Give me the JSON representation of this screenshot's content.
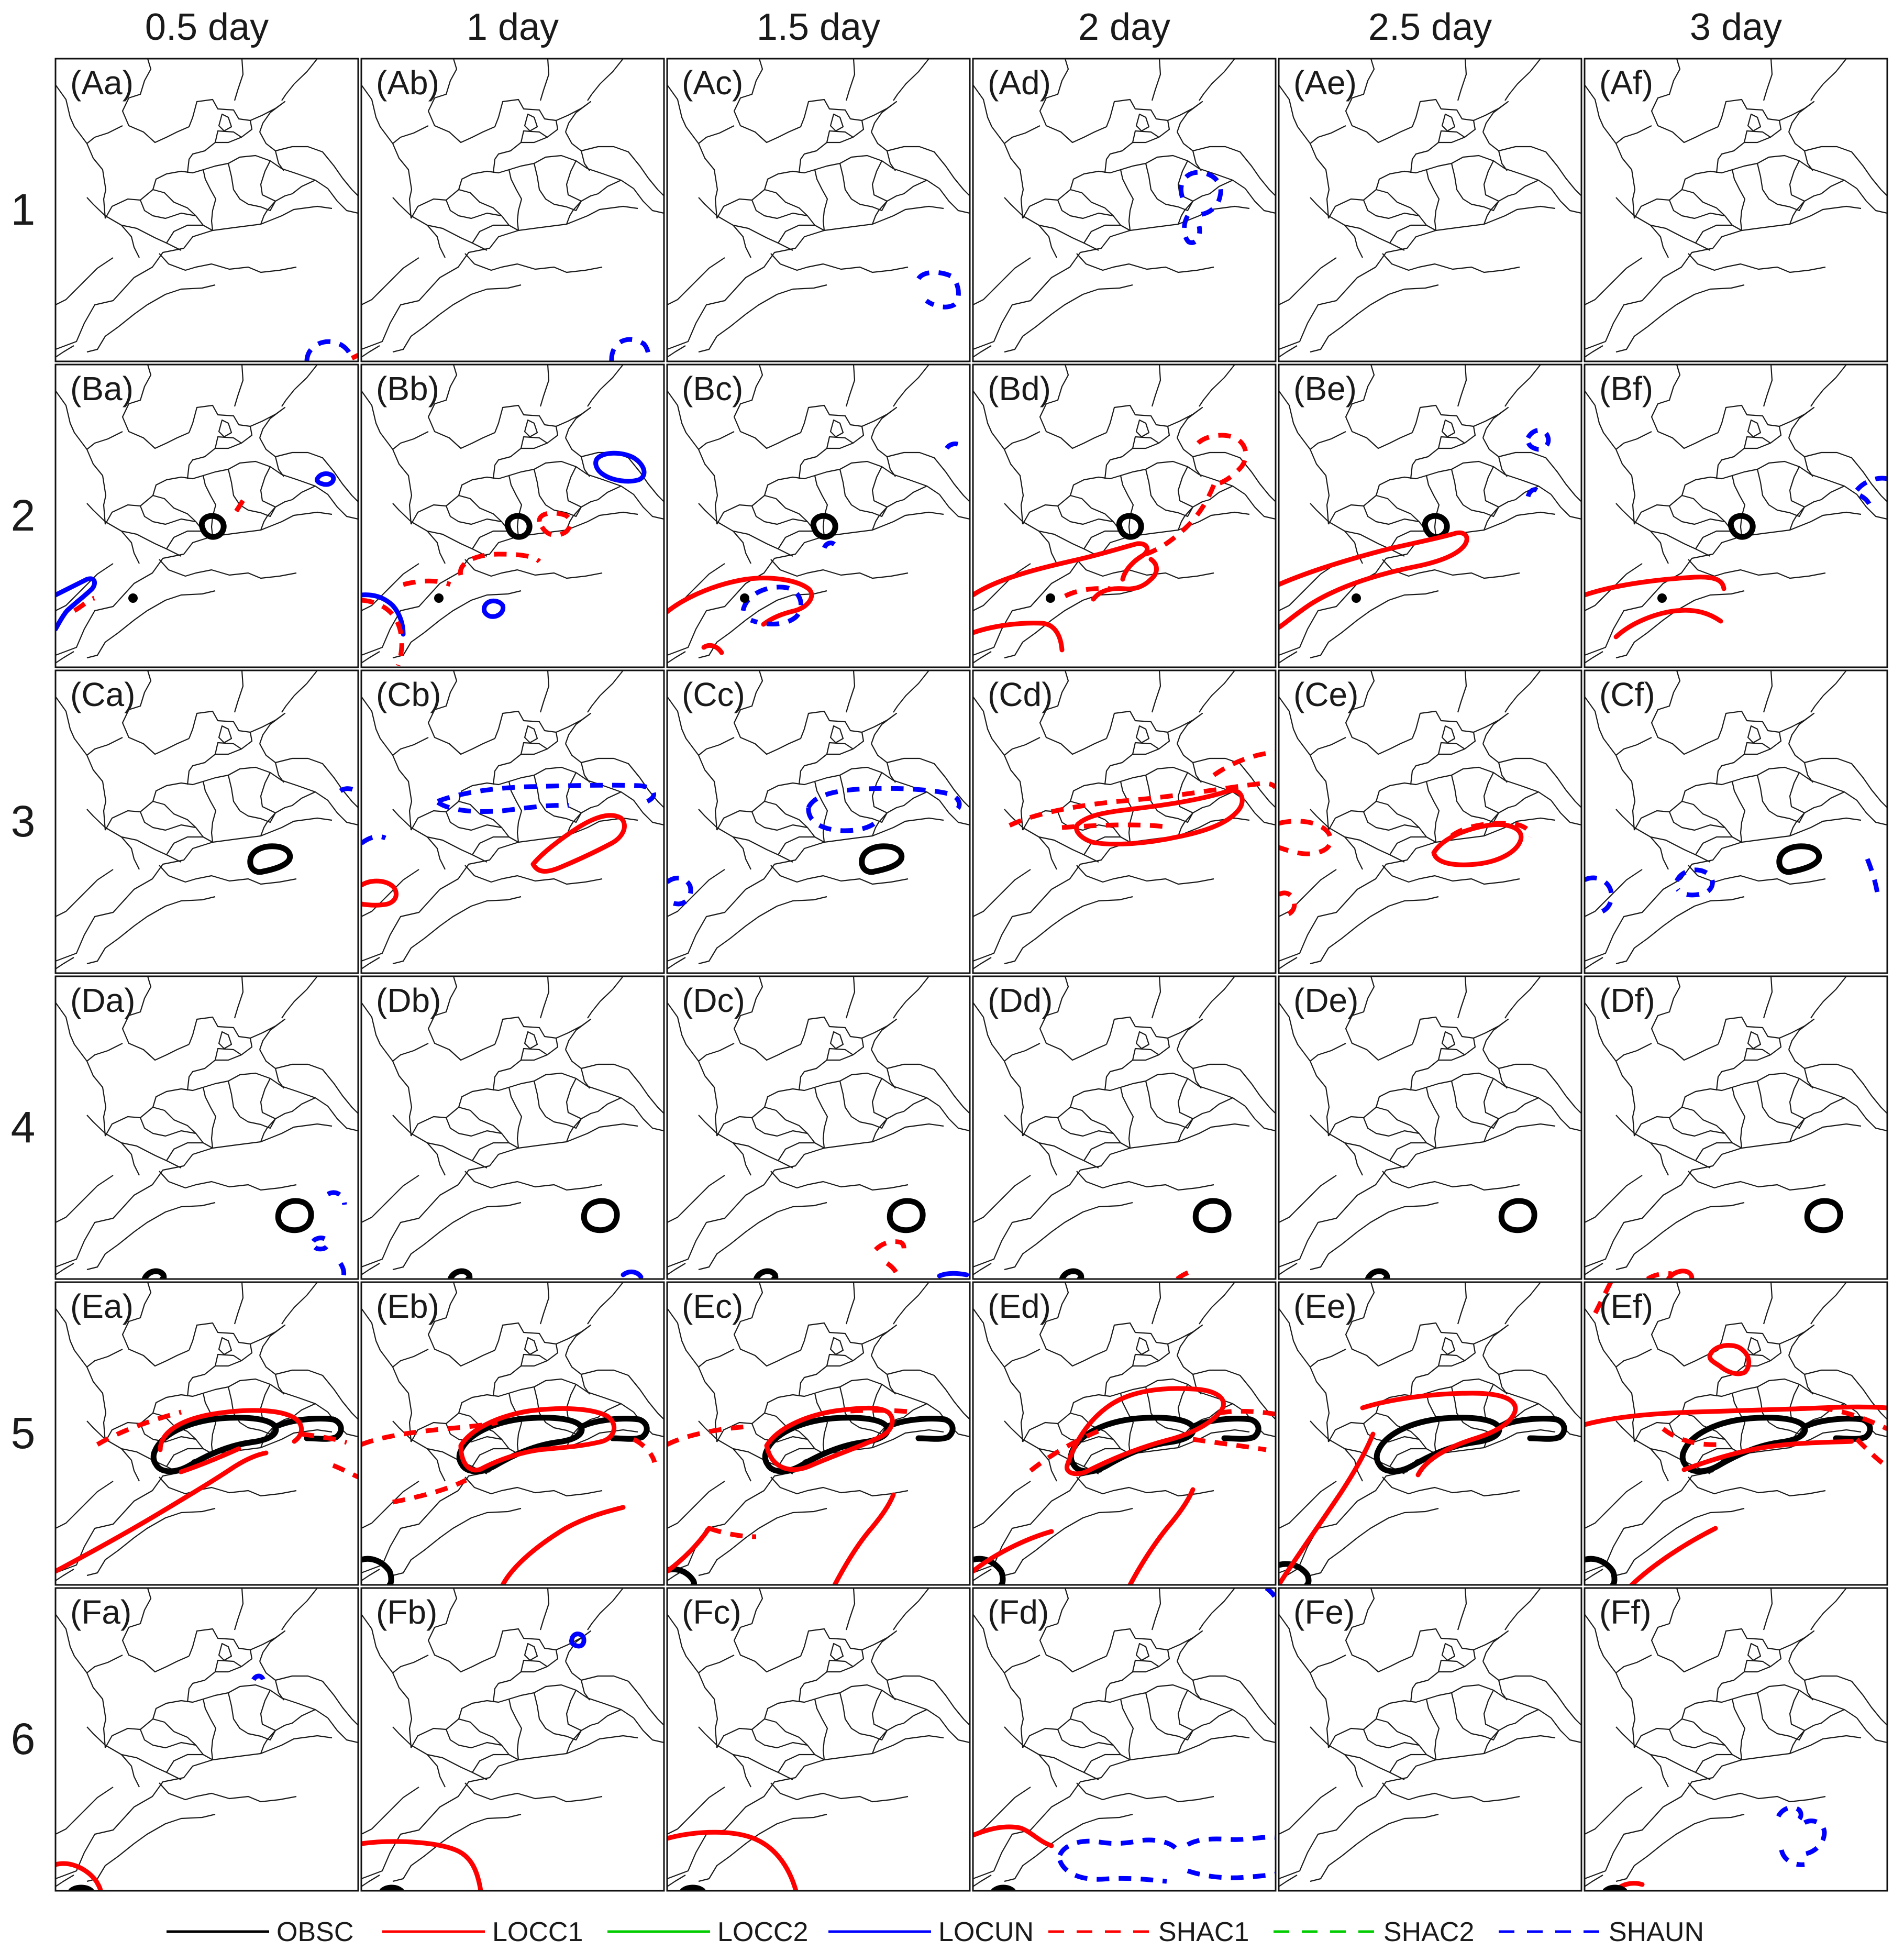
{
  "columns": [
    "0.5 day",
    "1 day",
    "1.5 day",
    "2 day",
    "2.5 day",
    "3 day"
  ],
  "rows": [
    "1",
    "2",
    "3",
    "4",
    "5",
    "6"
  ],
  "row_letters": [
    "A",
    "B",
    "C",
    "D",
    "E",
    "F"
  ],
  "col_letters": [
    "a",
    "b",
    "c",
    "d",
    "e",
    "f"
  ],
  "legend": [
    {
      "label": "OBSC",
      "color": "#000000",
      "dash": false
    },
    {
      "label": "LOCC1",
      "color": "#ff0000",
      "dash": false
    },
    {
      "label": "LOCC2",
      "color": "#00cc00",
      "dash": false
    },
    {
      "label": "LOCUN",
      "color": "#0000ff",
      "dash": false
    },
    {
      "label": "SHAC1",
      "color": "#ff0000",
      "dash": true
    },
    {
      "label": "SHAC2",
      "color": "#00cc00",
      "dash": true
    },
    {
      "label": "SHAUN",
      "color": "#0000ff",
      "dash": true
    }
  ]
}
